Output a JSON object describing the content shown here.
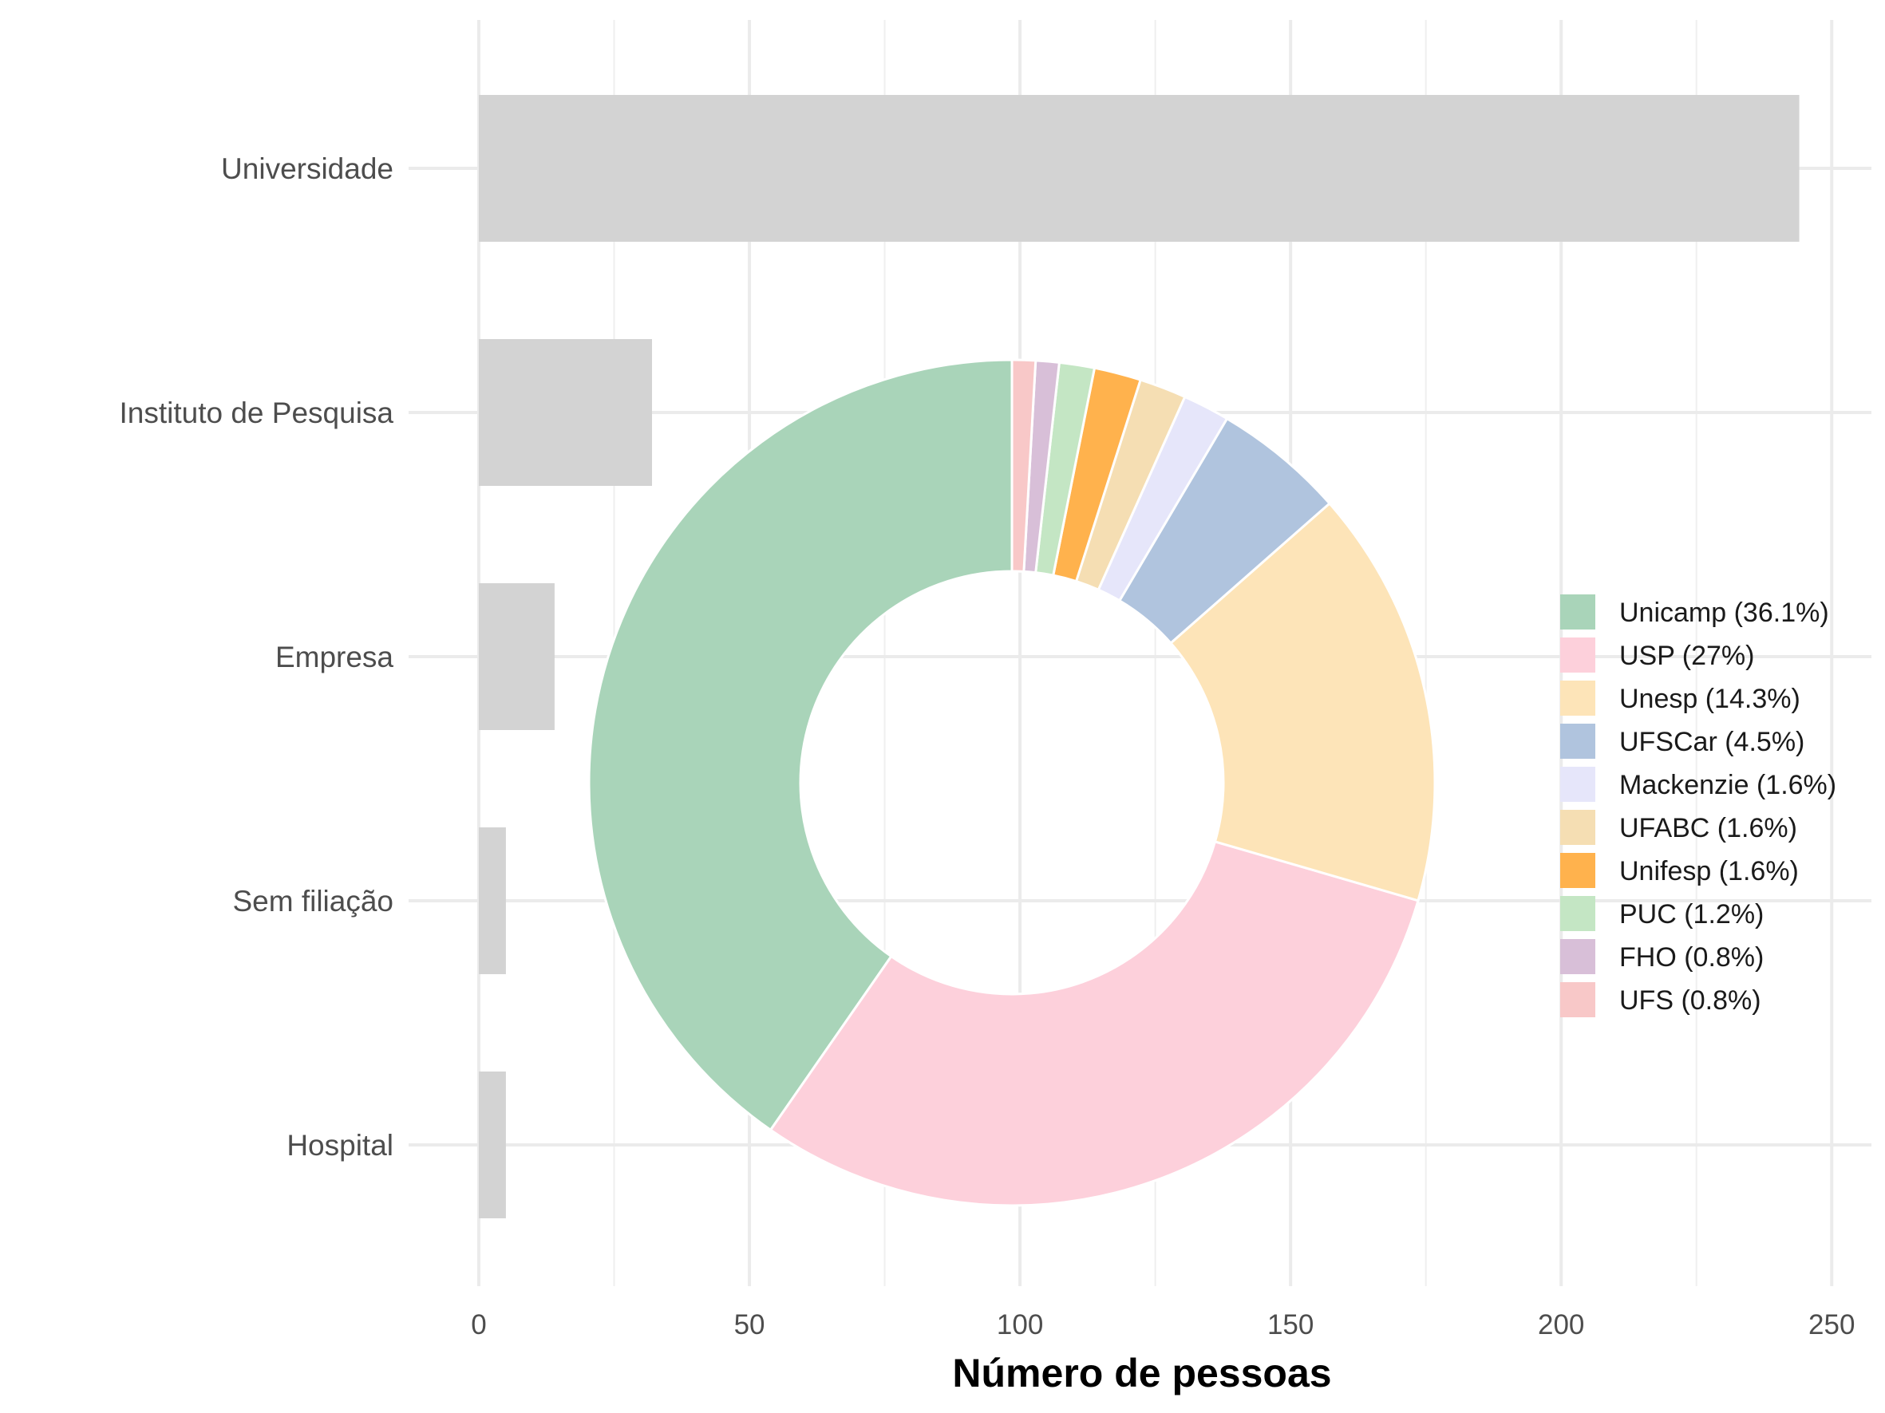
{
  "chart_data": [
    {
      "type": "bar",
      "orientation": "horizontal",
      "categories": [
        "Universidade",
        "Instituto de Pesquisa",
        "Empresa",
        "Sem filiação",
        "Hospital"
      ],
      "values": [
        244,
        32,
        14,
        5,
        5
      ],
      "xlabel": "Número de pessoas",
      "ylabel": "",
      "xlim": [
        0,
        255
      ],
      "xticks": [
        0,
        50,
        100,
        150,
        200,
        250
      ],
      "bar_color": "#d3d3d3",
      "grid": true
    },
    {
      "type": "pie",
      "style": "donut",
      "slices": [
        {
          "label": "Unicamp (36.1%)",
          "value": 36.1,
          "color": "#a9d4b9"
        },
        {
          "label": "USP (27%)",
          "value": 27.0,
          "color": "#fdd0db"
        },
        {
          "label": "Unesp (14.3%)",
          "value": 14.3,
          "color": "#fde4b8"
        },
        {
          "label": "UFSCar (4.5%)",
          "value": 4.5,
          "color": "#b0c4de"
        },
        {
          "label": "Mackenzie (1.6%)",
          "value": 1.6,
          "color": "#e6e6fa"
        },
        {
          "label": "UFABC (1.6%)",
          "value": 1.6,
          "color": "#f5deb3"
        },
        {
          "label": "Unifesp (1.6%)",
          "value": 1.6,
          "color": "#ffb24d"
        },
        {
          "label": "PUC (1.2%)",
          "value": 1.2,
          "color": "#c4e6c4"
        },
        {
          "label": "FHO (0.8%)",
          "value": 0.8,
          "color": "#d8bfd8"
        },
        {
          "label": "UFS (0.8%)",
          "value": 0.8,
          "color": "#f8c8c8"
        }
      ],
      "legend_position": "right"
    }
  ]
}
